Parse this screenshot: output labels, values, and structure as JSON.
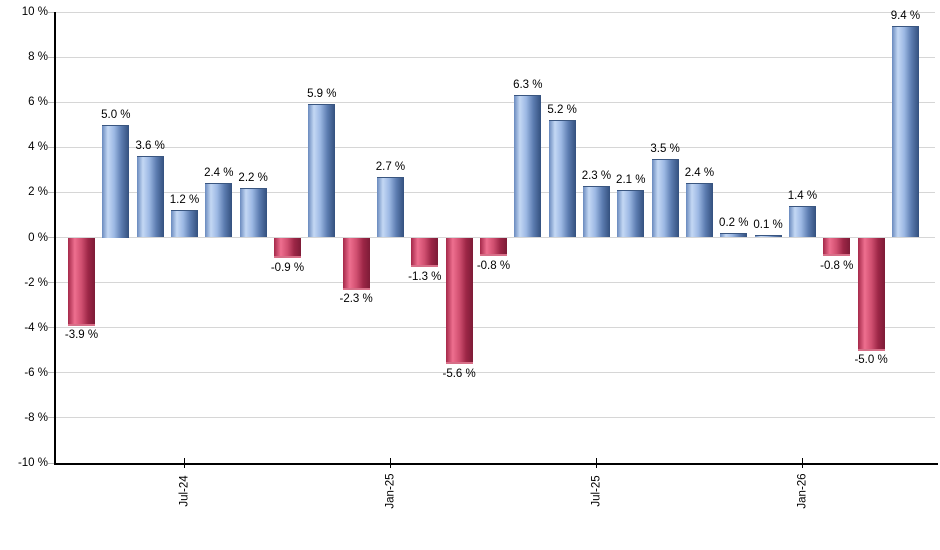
{
  "chart_data": {
    "type": "bar",
    "title": "",
    "xlabel": "",
    "ylabel": "",
    "unit": "%",
    "ylim": [
      -10,
      10
    ],
    "ytick_step": 2,
    "grid": true,
    "legend": "none",
    "bars": [
      {
        "value": -3.9,
        "label": "-3.9 %"
      },
      {
        "value": 5.0,
        "label": "5.0 %"
      },
      {
        "value": 3.6,
        "label": "3.6 %"
      },
      {
        "value": 1.2,
        "label": "1.2 %"
      },
      {
        "value": 2.4,
        "label": "2.4 %"
      },
      {
        "value": 2.2,
        "label": "2.2 %"
      },
      {
        "value": -0.9,
        "label": "-0.9 %"
      },
      {
        "value": 5.9,
        "label": "5.9 %"
      },
      {
        "value": -2.3,
        "label": "-2.3 %"
      },
      {
        "value": 2.7,
        "label": "2.7 %"
      },
      {
        "value": -1.3,
        "label": "-1.3 %"
      },
      {
        "value": -5.6,
        "label": "-5.6 %"
      },
      {
        "value": -0.8,
        "label": "-0.8 %"
      },
      {
        "value": 6.3,
        "label": "6.3 %"
      },
      {
        "value": 5.2,
        "label": "5.2 %"
      },
      {
        "value": 2.3,
        "label": "2.3 %"
      },
      {
        "value": 2.1,
        "label": "2.1 %"
      },
      {
        "value": 3.5,
        "label": "3.5 %"
      },
      {
        "value": 2.4,
        "label": "2.4 %"
      },
      {
        "value": 0.2,
        "label": "0.2 %"
      },
      {
        "value": 0.1,
        "label": "0.1 %"
      },
      {
        "value": 1.4,
        "label": "1.4 %"
      },
      {
        "value": -0.8,
        "label": "-0.8 %"
      },
      {
        "value": -5.0,
        "label": "-5.0 %"
      },
      {
        "value": 9.4,
        "label": "9.4 %"
      }
    ],
    "yticks": [
      "10 %",
      "8 %",
      "6 %",
      "4 %",
      "2 %",
      "0 %",
      "-2 %",
      "-4 %",
      "-6 %",
      "-8 %",
      "-10 %"
    ],
    "xticks": [
      {
        "index": 3,
        "label": "Jul-24"
      },
      {
        "index": 9,
        "label": "Jan-25"
      },
      {
        "index": 15,
        "label": "Jul-25"
      },
      {
        "index": 21,
        "label": "Jan-26"
      }
    ],
    "colors": {
      "positive_edge_left": "#6989bd",
      "positive_highlight": "#c4d8f4",
      "positive_mid": "#9db9e4",
      "positive_shadow": "#5c7cb0",
      "positive_edge_right": "#33507e",
      "negative_edge_left": "#a42849",
      "negative_highlight": "#ee6f8f",
      "negative_mid": "#d04f70",
      "negative_shadow": "#9c2646",
      "negative_edge_right": "#7d1b37",
      "gridline": "#d6d6d6",
      "axis": "#000000",
      "label_text": "#000000"
    }
  }
}
